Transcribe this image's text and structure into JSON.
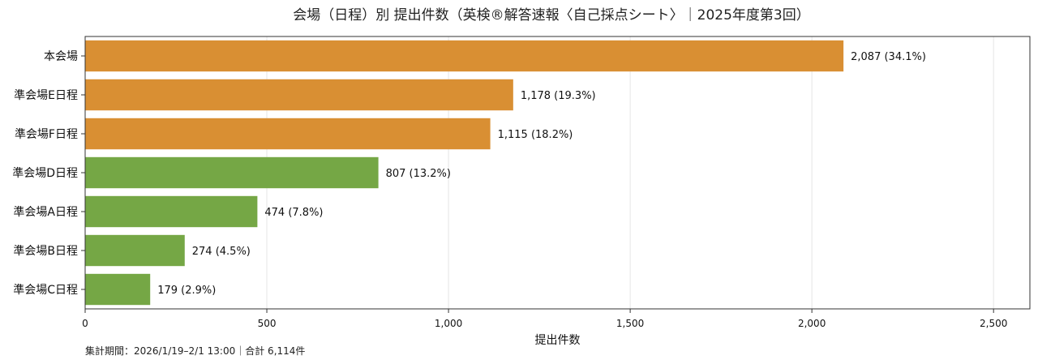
{
  "chart_data": {
    "type": "bar",
    "orientation": "horizontal",
    "title": "会場（日程）別 提出件数（英検®解答速報〈自己採点シート〉｜2025年度第3回）",
    "xlabel": "提出件数",
    "ylabel": "",
    "xlim": [
      0,
      2600
    ],
    "xticks": [
      0,
      500,
      1000,
      1500,
      2000,
      2500
    ],
    "xtick_labels": [
      "0",
      "500",
      "1,000",
      "1,500",
      "2,000",
      "2,500"
    ],
    "grid": true,
    "categories": [
      "本会場",
      "準会場E日程",
      "準会場F日程",
      "準会場D日程",
      "準会場A日程",
      "準会場B日程",
      "準会場C日程"
    ],
    "values": [
      2087,
      1178,
      1115,
      807,
      474,
      274,
      179
    ],
    "data_labels": [
      "2,087 (34.1%)",
      "1,178 (19.3%)",
      "1,115 (18.2%)",
      "807 (13.2%)",
      "474 (7.8%)",
      "274 (4.5%)",
      "179 (2.9%)"
    ],
    "bar_colors": [
      "#D98F33",
      "#D98F33",
      "#D98F33",
      "#75A745",
      "#75A745",
      "#75A745",
      "#75A745"
    ],
    "footnote": "集計期間：2026/1/19–2/1 13:00｜合計 6,114件"
  }
}
